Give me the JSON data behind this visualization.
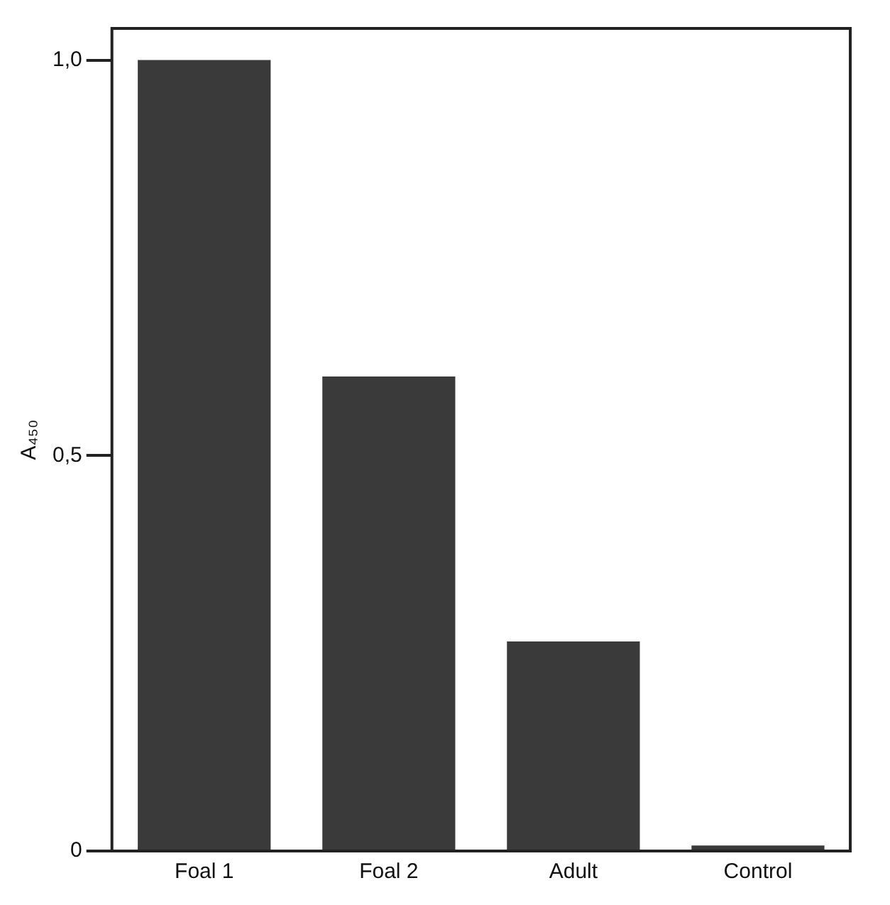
{
  "chart_data": {
    "type": "bar",
    "ylabel": "A₄₅₀",
    "categories": [
      "Foal 1",
      "Foal 2",
      "Adult",
      "Control"
    ],
    "values": [
      1.0,
      0.6,
      0.265,
      0.007
    ],
    "color": "#3a3a3a",
    "ylim": [
      0,
      1.04
    ],
    "yticks": [
      {
        "value": 0,
        "label": "0"
      },
      {
        "value": 0.5,
        "label": "0,5"
      },
      {
        "value": 1.0,
        "label": "1,0"
      }
    ],
    "grid": false,
    "legend": false
  }
}
